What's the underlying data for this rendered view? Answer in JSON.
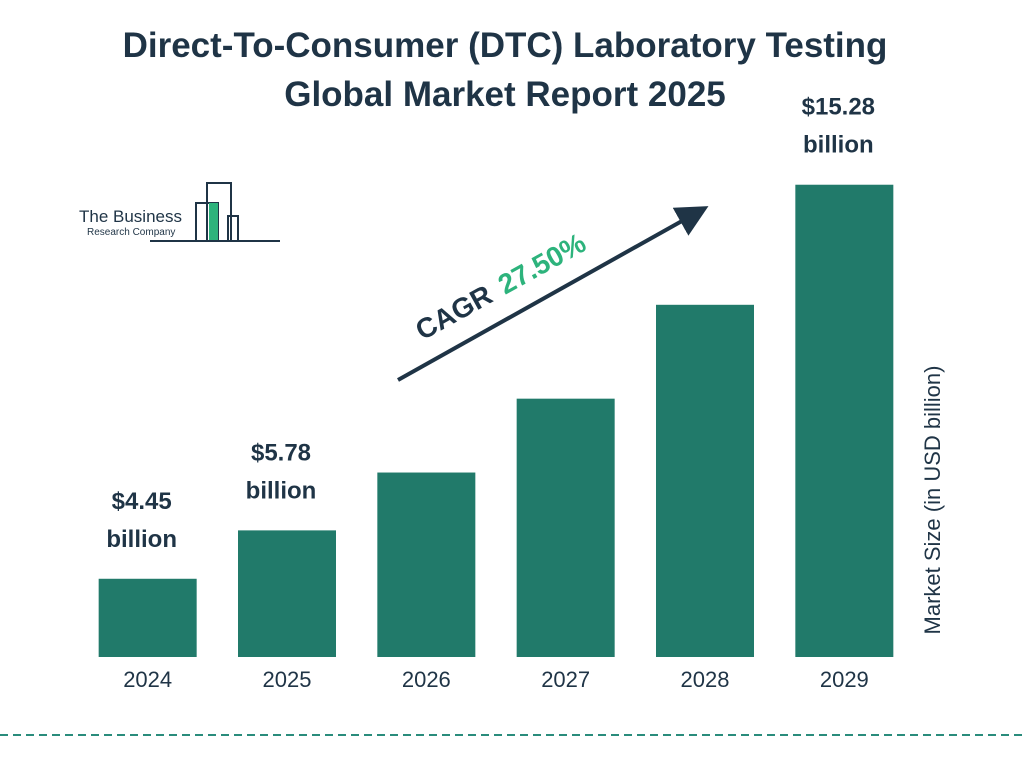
{
  "chart_data": {
    "type": "bar",
    "title": "Direct-To-Consumer (DTC) Laboratory Testing",
    "subtitle": "Global Market Report 2025",
    "logo": {
      "line1": "The Business",
      "line2": "Research Company"
    },
    "categories": [
      "2024",
      "2025",
      "2026",
      "2027",
      "2028",
      "2029"
    ],
    "values": [
      4.45,
      5.78,
      7.37,
      9.4,
      11.98,
      15.28
    ],
    "value_labels": [
      "$4.45 billion",
      "$5.78 billion",
      null,
      null,
      null,
      "$15.28 billion"
    ],
    "color": "#217a6a",
    "ylim": [
      2.3,
      15.3
    ],
    "y_label": "Market Size (in USD billion)",
    "annotation": {
      "label": "CAGR",
      "value": "27.50%"
    }
  }
}
